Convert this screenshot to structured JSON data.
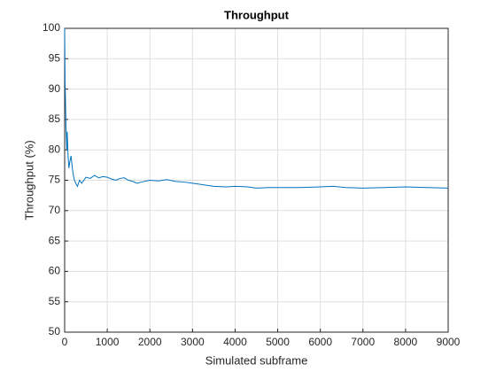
{
  "chart_data": {
    "type": "line",
    "title": "Throughput",
    "x_label": "Simulated subframe",
    "y_label": "Throughput (%)",
    "x": [
      0,
      10,
      20,
      30,
      40,
      50,
      60,
      70,
      80,
      90,
      100,
      120,
      150,
      180,
      200,
      230,
      260,
      300,
      350,
      400,
      450,
      500,
      600,
      700,
      800,
      900,
      1000,
      1100,
      1200,
      1300,
      1400,
      1500,
      1600,
      1700,
      1800,
      2000,
      2200,
      2400,
      2600,
      2800,
      3000,
      3200,
      3500,
      3800,
      4000,
      4300,
      4500,
      4800,
      5000,
      5500,
      6000,
      6300,
      6600,
      7000,
      7500,
      8000,
      8500,
      9000
    ],
    "series": [
      {
        "color": "#0072bd",
        "values": [
          100,
          91,
          88,
          84,
          82,
          80,
          83,
          81,
          79,
          78,
          77,
          78,
          79,
          77,
          76,
          75,
          74.5,
          74,
          75,
          74.5,
          75,
          75.5,
          75.3,
          75.8,
          75.4,
          75.6,
          75.5,
          75.2,
          75.0,
          75.3,
          75.4,
          75.0,
          74.8,
          74.5,
          74.7,
          75.0,
          74.9,
          75.1,
          74.8,
          74.7,
          74.5,
          74.3,
          74.0,
          73.9,
          74.0,
          73.9,
          73.7,
          73.8,
          73.8,
          73.8,
          73.9,
          74.0,
          73.8,
          73.7,
          73.8,
          73.9,
          73.8,
          73.7
        ]
      }
    ],
    "xlim": [
      0,
      9000
    ],
    "xticks": [
      0,
      1000,
      2000,
      3000,
      4000,
      5000,
      6000,
      7000,
      8000,
      9000
    ],
    "ylim": [
      50,
      100
    ],
    "yticks": [
      50,
      55,
      60,
      65,
      70,
      75,
      80,
      85,
      90,
      95,
      100
    ],
    "grid": true
  }
}
